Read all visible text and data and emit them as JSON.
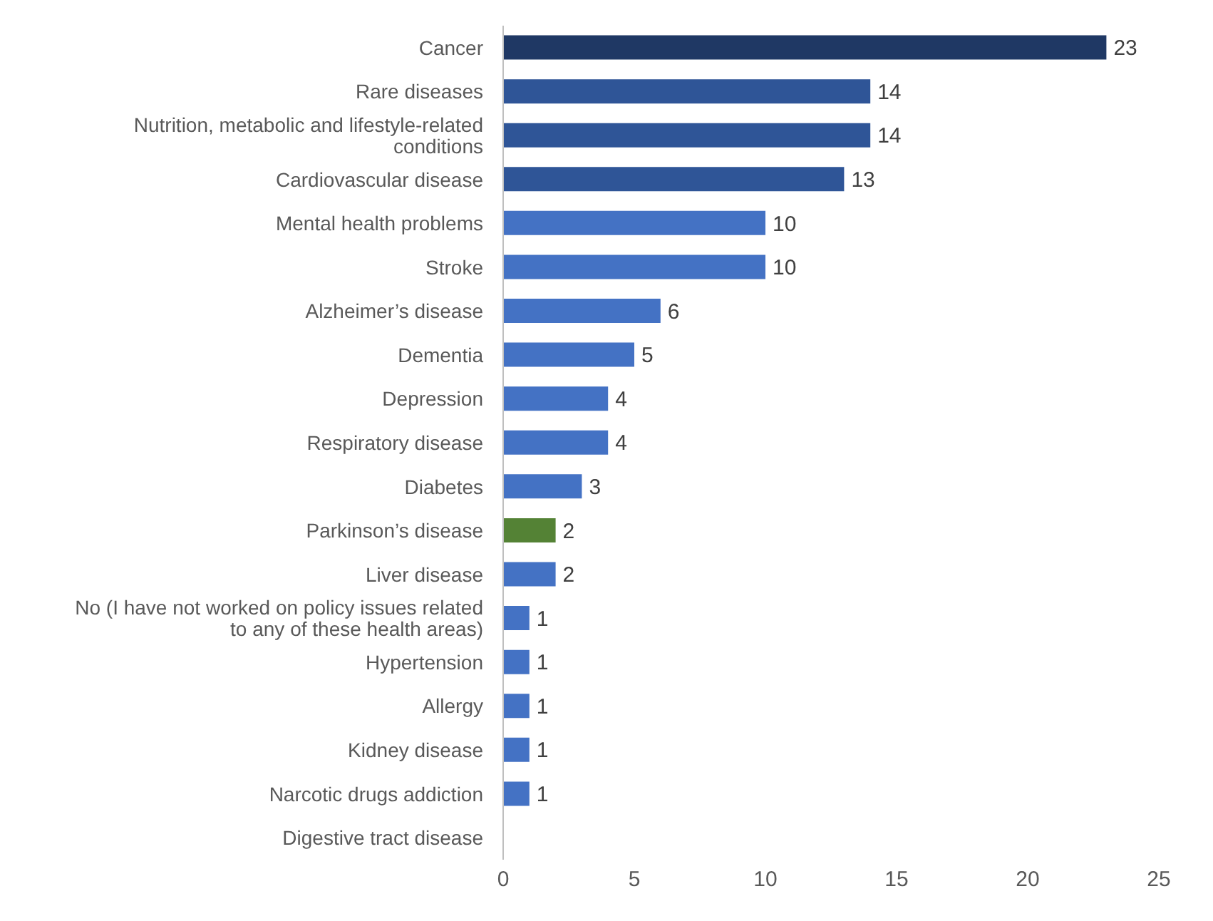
{
  "chart_data": {
    "type": "bar",
    "orientation": "horizontal",
    "categories": [
      "Cancer",
      "Rare diseases",
      "Nutrition, metabolic and lifestyle-related conditions",
      "Cardiovascular disease",
      "Mental health problems",
      "Stroke",
      "Alzheimer’s disease",
      "Dementia",
      "Depression",
      "Respiratory disease",
      "Diabetes",
      "Parkinson’s disease",
      "Liver disease",
      "No (I have not worked on policy issues related to any of these health areas)",
      "Hypertension",
      "Allergy",
      "Kidney disease",
      "Narcotic drugs addiction",
      "Digestive tract disease"
    ],
    "values": [
      23,
      14,
      14,
      13,
      10,
      10,
      6,
      5,
      4,
      4,
      3,
      2,
      2,
      1,
      1,
      1,
      1,
      1,
      null
    ],
    "colors": [
      "#1f3864",
      "#2f5597",
      "#2f5597",
      "#2f5597",
      "#4472c4",
      "#4472c4",
      "#4472c4",
      "#4472c4",
      "#4472c4",
      "#4472c4",
      "#4472c4",
      "#548235",
      "#4472c4",
      "#4472c4",
      "#4472c4",
      "#4472c4",
      "#4472c4",
      "#4472c4",
      "#4472c4"
    ],
    "xlim": [
      0,
      25
    ],
    "xticks": [
      0,
      5,
      10,
      15,
      20,
      25
    ],
    "data_labels": true,
    "grid": false,
    "legend": false
  }
}
